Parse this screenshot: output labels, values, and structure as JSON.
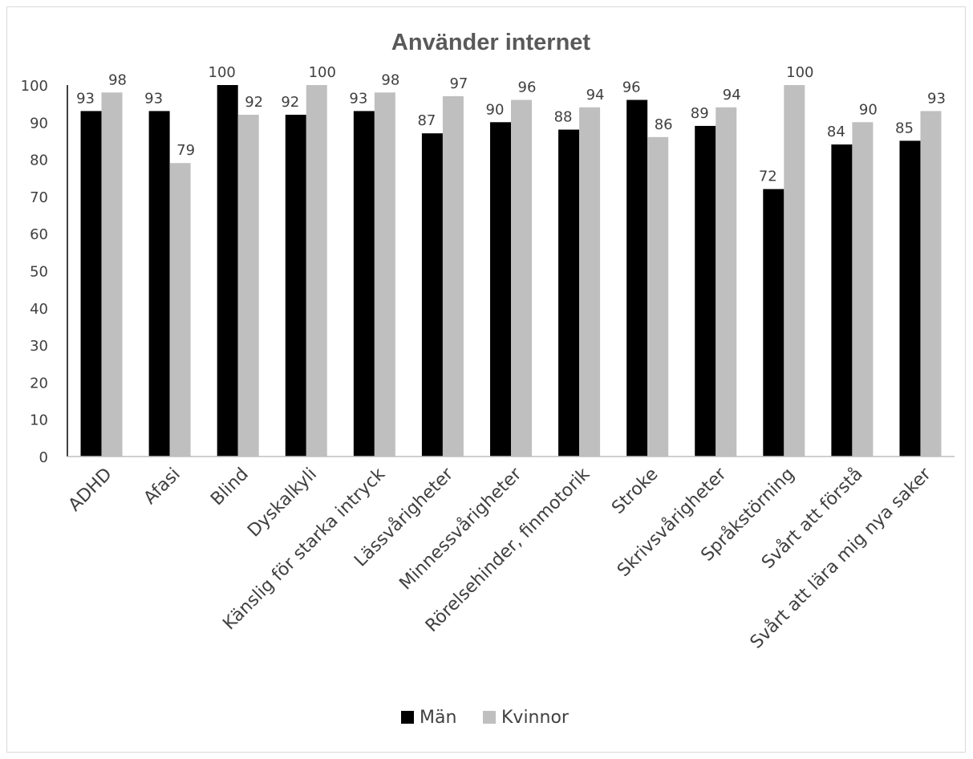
{
  "chart_data": {
    "type": "bar",
    "title": "Använder internet",
    "xlabel": "",
    "ylabel": "",
    "ylim": [
      0,
      100
    ],
    "yticks": [
      0,
      10,
      20,
      30,
      40,
      50,
      60,
      70,
      80,
      90,
      100
    ],
    "grid": false,
    "legend_position": "bottom",
    "categories": [
      "ADHD",
      "Afasi",
      "Blind",
      "Dyskalkyli",
      "Känslig för starka intryck",
      "Lässvårigheter",
      "Minnessvårigheter",
      "Rörelsehinder, finmotorik",
      "Stroke",
      "Skrivsvårigheter",
      "Språkstörning",
      "Svårt att förstå",
      "Svårt att lära mig nya saker"
    ],
    "series": [
      {
        "name": "Män",
        "color": "#000000",
        "values": [
          93,
          93,
          100,
          92,
          93,
          87,
          90,
          88,
          96,
          89,
          72,
          84,
          85
        ]
      },
      {
        "name": "Kvinnor",
        "color": "#bfbfbf",
        "values": [
          98,
          79,
          92,
          100,
          98,
          97,
          96,
          94,
          86,
          94,
          100,
          90,
          93
        ]
      }
    ]
  }
}
